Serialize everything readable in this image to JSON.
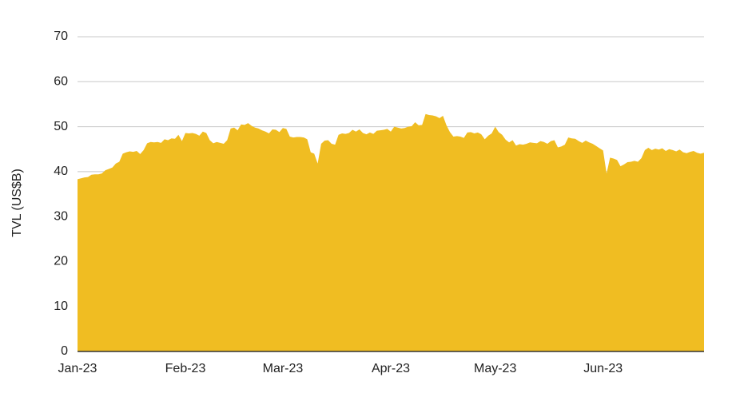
{
  "chart_data": {
    "type": "area",
    "ylabel": "TVL (US$B)",
    "color": "#f0bd22",
    "categories": [
      "Jan-23",
      null,
      null,
      null,
      null,
      null,
      null,
      null,
      null,
      null,
      null,
      null,
      null,
      null,
      null,
      null,
      null,
      null,
      null,
      null,
      null,
      null,
      null,
      null,
      null,
      null,
      null,
      null,
      null,
      null,
      null,
      "Feb-23",
      null,
      null,
      null,
      null,
      null,
      null,
      null,
      null,
      null,
      null,
      null,
      null,
      null,
      null,
      null,
      null,
      null,
      null,
      null,
      null,
      null,
      null,
      null,
      null,
      null,
      null,
      null,
      "Mar-23",
      null,
      null,
      null,
      null,
      null,
      null,
      null,
      null,
      null,
      null,
      null,
      null,
      null,
      null,
      null,
      null,
      null,
      null,
      null,
      null,
      null,
      null,
      null,
      null,
      null,
      null,
      null,
      null,
      null,
      null,
      "Apr-23",
      null,
      null,
      null,
      null,
      null,
      null,
      null,
      null,
      null,
      null,
      null,
      null,
      null,
      null,
      null,
      null,
      null,
      null,
      null,
      null,
      null,
      null,
      null,
      null,
      null,
      null,
      null,
      null,
      null,
      "May-23",
      null,
      null,
      null,
      null,
      null,
      null,
      null,
      null,
      null,
      null,
      null,
      null,
      null,
      null,
      null,
      null,
      null,
      null,
      null,
      null,
      null,
      null,
      null,
      null,
      null,
      null,
      null,
      null,
      null,
      null,
      "Jun-23",
      null,
      null,
      null,
      null,
      null,
      null,
      null,
      null,
      null,
      null,
      null,
      null,
      null,
      null,
      null,
      null,
      null,
      null,
      null,
      null,
      null,
      null,
      null,
      null,
      null,
      null,
      null,
      null,
      null
    ],
    "values": [
      38.3,
      38.5,
      38.7,
      38.8,
      39.3,
      39.4,
      39.4,
      39.6,
      40.3,
      40.6,
      40.9,
      41.8,
      42.2,
      44.0,
      44.3,
      44.5,
      44.4,
      44.6,
      43.9,
      44.8,
      46.3,
      46.6,
      46.5,
      46.6,
      46.4,
      47.2,
      47.0,
      47.4,
      47.3,
      48.2,
      46.8,
      48.6,
      48.5,
      48.6,
      48.4,
      48.0,
      48.9,
      48.6,
      47.0,
      46.3,
      46.6,
      46.4,
      46.2,
      47.0,
      49.6,
      49.8,
      49.2,
      50.5,
      50.4,
      50.8,
      50.2,
      49.8,
      49.6,
      49.2,
      48.9,
      48.5,
      49.4,
      49.3,
      48.8,
      49.7,
      49.5,
      47.8,
      47.6,
      47.7,
      47.7,
      47.6,
      47.2,
      44.3,
      44.0,
      41.8,
      46.2,
      46.9,
      47.0,
      46.2,
      46.0,
      48.2,
      48.5,
      48.4,
      48.6,
      49.3,
      48.9,
      49.4,
      48.6,
      48.3,
      48.7,
      48.4,
      49.1,
      49.2,
      49.3,
      49.5,
      48.9,
      50.0,
      49.8,
      49.6,
      49.7,
      50.0,
      50.1,
      51.0,
      50.3,
      50.4,
      52.8,
      52.6,
      52.5,
      52.3,
      51.9,
      52.4,
      50.3,
      48.8,
      47.8,
      47.9,
      47.8,
      47.5,
      48.7,
      48.8,
      48.5,
      48.7,
      48.3,
      47.2,
      48.0,
      48.5,
      50.0,
      48.8,
      48.2,
      47.1,
      46.5,
      47.0,
      45.8,
      46.1,
      46.0,
      46.2,
      46.5,
      46.4,
      46.3,
      46.8,
      46.6,
      46.2,
      46.8,
      47.0,
      45.4,
      45.6,
      46.0,
      47.6,
      47.4,
      47.3,
      46.8,
      46.4,
      46.9,
      46.5,
      46.2,
      45.7,
      45.2,
      44.7,
      39.6,
      43.1,
      42.9,
      42.6,
      41.2,
      41.6,
      42.1,
      42.2,
      42.4,
      42.2,
      43.0,
      44.8,
      45.3,
      44.8,
      45.1,
      44.9,
      45.2,
      44.6,
      45.0,
      44.8,
      44.5,
      44.9,
      44.3,
      44.1,
      44.4,
      44.6,
      44.2,
      44.0,
      44.2
    ],
    "ylim": [
      0,
      70
    ],
    "yticks": [
      0,
      10,
      20,
      30,
      40,
      50,
      60,
      70
    ],
    "grid": true
  }
}
